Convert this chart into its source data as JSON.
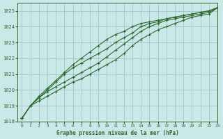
{
  "xlabel": "Graphe pression niveau de la mer (hPa)",
  "ylim": [
    1018,
    1025.5
  ],
  "xlim": [
    -0.5,
    23
  ],
  "yticks": [
    1018,
    1019,
    1020,
    1021,
    1022,
    1023,
    1024,
    1025
  ],
  "xticks": [
    0,
    1,
    2,
    3,
    4,
    5,
    6,
    7,
    8,
    9,
    10,
    11,
    12,
    13,
    14,
    15,
    16,
    17,
    18,
    19,
    20,
    21,
    22,
    23
  ],
  "bg_color": "#cbe8e8",
  "grid_color": "#9bbfbf",
  "line_color": "#2d6a2d",
  "series": [
    [
      1018.2,
      1019.0,
      1019.3,
      1019.6,
      1019.9,
      1020.2,
      1020.5,
      1020.7,
      1021.0,
      1021.3,
      1021.6,
      1021.9,
      1022.3,
      1022.8,
      1023.2,
      1023.5,
      1023.8,
      1024.0,
      1024.2,
      1024.4,
      1024.6,
      1024.7,
      1024.8,
      1025.2
    ],
    [
      1018.2,
      1019.0,
      1019.5,
      1019.9,
      1020.2,
      1020.5,
      1020.8,
      1021.1,
      1021.4,
      1021.7,
      1022.1,
      1022.5,
      1022.9,
      1023.3,
      1023.7,
      1024.0,
      1024.2,
      1024.4,
      1024.5,
      1024.6,
      1024.7,
      1024.8,
      1024.9,
      1025.2
    ],
    [
      1018.2,
      1019.0,
      1019.5,
      1020.0,
      1020.5,
      1021.0,
      1021.4,
      1021.7,
      1022.0,
      1022.3,
      1022.6,
      1023.0,
      1023.3,
      1023.6,
      1024.0,
      1024.2,
      1024.3,
      1024.5,
      1024.6,
      1024.7,
      1024.8,
      1024.9,
      1025.0,
      1025.2
    ],
    [
      1018.2,
      1019.0,
      1019.6,
      1020.1,
      1020.6,
      1021.1,
      1021.6,
      1022.0,
      1022.4,
      1022.8,
      1023.2,
      1023.5,
      1023.7,
      1024.0,
      1024.2,
      1024.3,
      1024.4,
      1024.5,
      1024.6,
      1024.7,
      1024.8,
      1024.9,
      1025.0,
      1025.2
    ]
  ],
  "marker_series": [
    0,
    1,
    2,
    3
  ],
  "marker": "+",
  "marker_size": 3.5,
  "linewidth": 0.8
}
